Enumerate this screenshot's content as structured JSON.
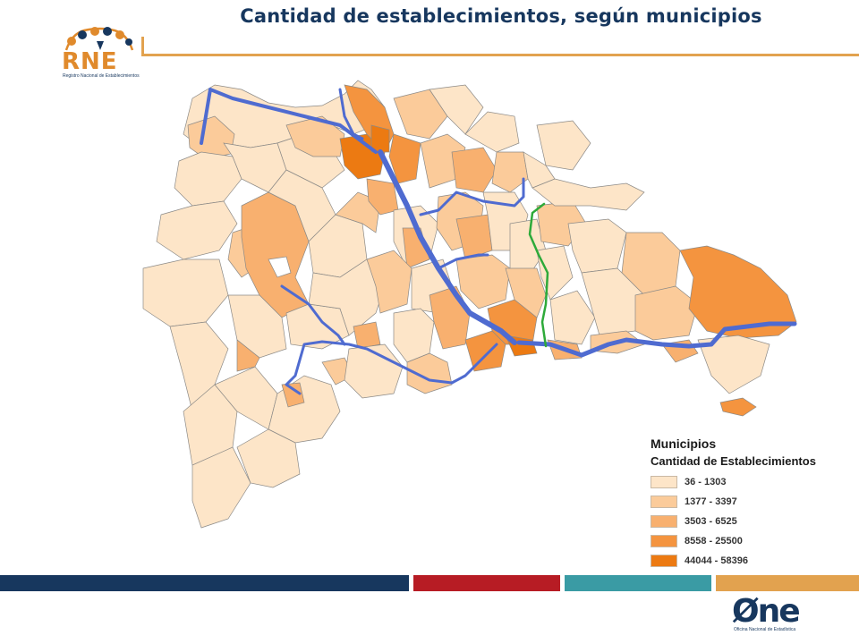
{
  "title": "Cantidad de establecimientos, según municipios",
  "logo_rne": {
    "text": "RNE",
    "caption": "Registro Nacional de Establecimientos"
  },
  "logo_one": {
    "text": "Øne",
    "caption": "Oficina Nacional de Estadística"
  },
  "legend": {
    "title": "Municipios",
    "subtitle": "Cantidad de Establecimientos",
    "items": [
      {
        "label": "36 - 1303",
        "color": "#fde5c8"
      },
      {
        "label": "1377 - 3397",
        "color": "#fbcb9a"
      },
      {
        "label": "3503 - 6525",
        "color": "#f8b06f"
      },
      {
        "label": "8558 - 25500",
        "color": "#f4943f"
      },
      {
        "label": "44044 - 58396",
        "color": "#ec7a12"
      }
    ]
  },
  "colors": {
    "title": "#17375e",
    "highway": "#4f6bd0",
    "secondary_road": "#2eaa3a",
    "bar_navy": "#17375e",
    "bar_red": "#b71c24",
    "bar_teal": "#3a9ba4",
    "bar_orange": "#e2a24f"
  }
}
